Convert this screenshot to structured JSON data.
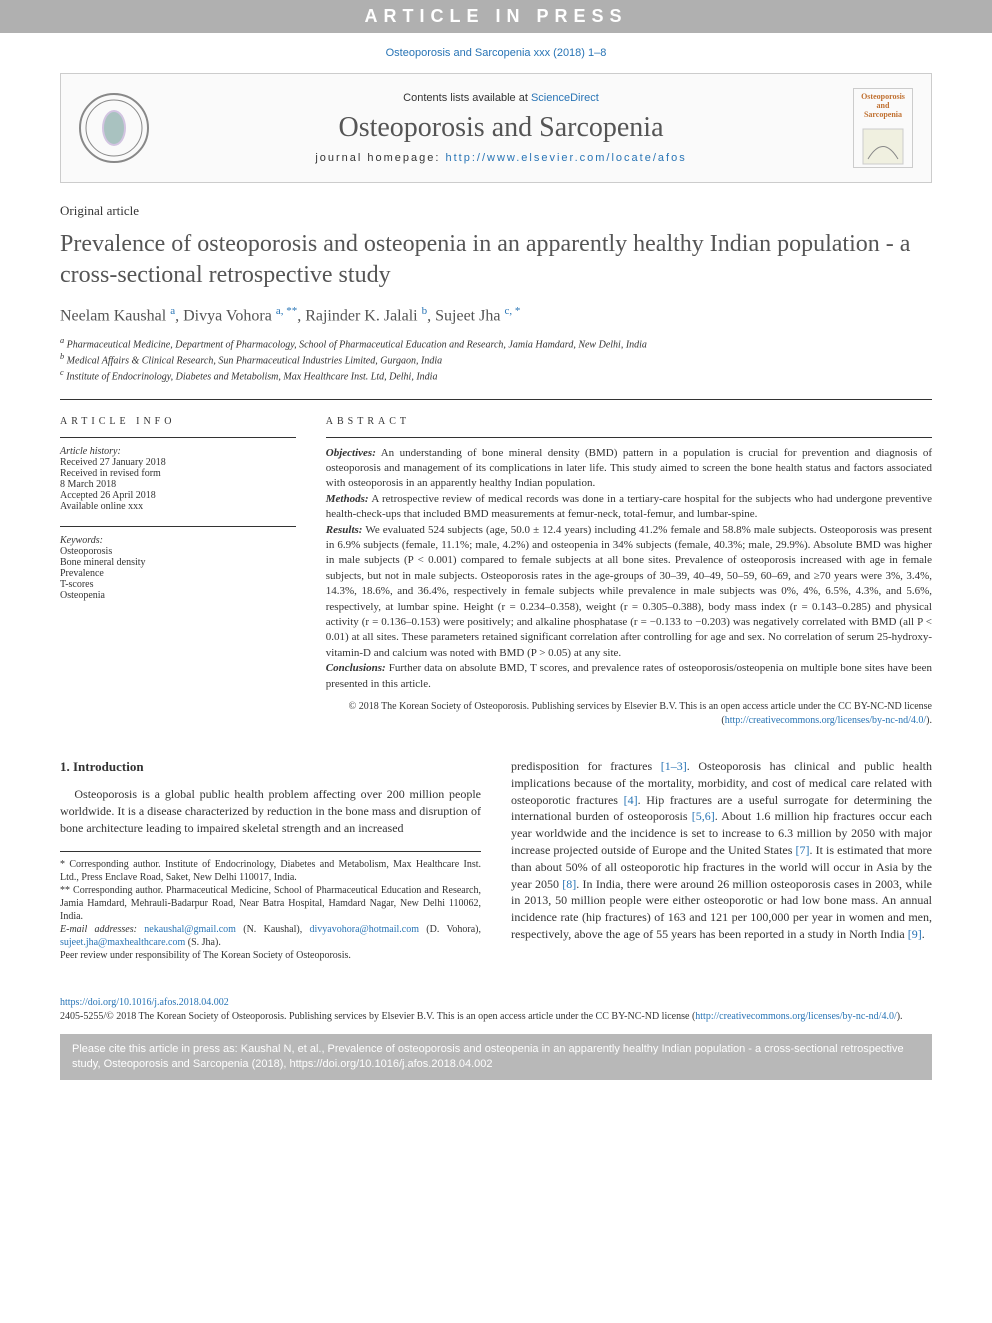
{
  "banner": "ARTICLE IN PRESS",
  "citation_top": "Osteoporosis and Sarcopenia xxx (2018) 1–8",
  "header": {
    "contents_text": "Contents lists available at ",
    "contents_link": "ScienceDirect",
    "journal": "Osteoporosis and Sarcopenia",
    "homepage_label": "journal homepage: ",
    "homepage_url": "http://www.elsevier.com/locate/afos",
    "cover_title": "Osteoporosis and Sarcopenia"
  },
  "article_type": "Original article",
  "title": "Prevalence of osteoporosis and osteopenia in an apparently healthy Indian population - a cross-sectional retrospective study",
  "authors_html": "Neelam Kaushal <sup>a</sup>, Divya Vohora <sup>a, **</sup>, Rajinder K. Jalali <sup>b</sup>, Sujeet Jha <sup>c, *</sup>",
  "affiliations": [
    "a Pharmaceutical Medicine, Department of Pharmacology, School of Pharmaceutical Education and Research, Jamia Hamdard, New Delhi, India",
    "b Medical Affairs & Clinical Research, Sun Pharmaceutical Industries Limited, Gurgaon, India",
    "c Institute of Endocrinology, Diabetes and Metabolism, Max Healthcare Inst. Ltd, Delhi, India"
  ],
  "info": {
    "heading": "ARTICLE INFO",
    "history_label": "Article history:",
    "history": [
      "Received 27 January 2018",
      "Received in revised form",
      "8 March 2018",
      "Accepted 26 April 2018",
      "Available online xxx"
    ],
    "keywords_label": "Keywords:",
    "keywords": [
      "Osteoporosis",
      "Bone mineral density",
      "Prevalence",
      "T-scores",
      "Osteopenia"
    ]
  },
  "abstract": {
    "heading": "ABSTRACT",
    "objectives_label": "Objectives:",
    "objectives": "An understanding of bone mineral density (BMD) pattern in a population is crucial for prevention and diagnosis of osteoporosis and management of its complications in later life. This study aimed to screen the bone health status and factors associated with osteoporosis in an apparently healthy Indian population.",
    "methods_label": "Methods:",
    "methods": "A retrospective review of medical records was done in a tertiary-care hospital for the subjects who had undergone preventive health-check-ups that included BMD measurements at femur-neck, total-femur, and lumbar-spine.",
    "results_label": "Results:",
    "results": "We evaluated 524 subjects (age, 50.0 ± 12.4 years) including 41.2% female and 58.8% male subjects. Osteoporosis was present in 6.9% subjects (female, 11.1%; male, 4.2%) and osteopenia in 34% subjects (female, 40.3%; male, 29.9%). Absolute BMD was higher in male subjects (P < 0.001) compared to female subjects at all bone sites. Prevalence of osteoporosis increased with age in female subjects, but not in male subjects. Osteoporosis rates in the age-groups of 30–39, 40–49, 50–59, 60–69, and ≥70 years were 3%, 3.4%, 14.3%, 18.6%, and 36.4%, respectively in female subjects while prevalence in male subjects was 0%, 4%, 6.5%, 4.3%, and 5.6%, respectively, at lumbar spine. Height (r = 0.234–0.358), weight (r = 0.305–0.388), body mass index (r = 0.143–0.285) and physical activity (r = 0.136–0.153) were positively; and alkaline phosphatase (r = −0.133 to −0.203) was negatively correlated with BMD (all P < 0.01) at all sites. These parameters retained significant correlation after controlling for age and sex. No correlation of serum 25-hydroxy-vitamin-D and calcium was noted with BMD (P > 0.05) at any site.",
    "conclusions_label": "Conclusions:",
    "conclusions": "Further data on absolute BMD, T scores, and prevalence rates of osteoporosis/osteopenia on multiple bone sites have been presented in this article.",
    "copyright": "© 2018 The Korean Society of Osteoporosis. Publishing services by Elsevier B.V. This is an open access article under the CC BY-NC-ND license (",
    "license_url": "http://creativecommons.org/licenses/by-nc-nd/4.0/",
    "copyright_end": ")."
  },
  "body": {
    "section1_heading": "1. Introduction",
    "para1": "Osteoporosis is a global public health problem affecting over 200 million people worldwide. It is a disease characterized by reduction in the bone mass and disruption of bone architecture leading to impaired skeletal strength and an increased",
    "para2_a": "predisposition for fractures ",
    "para2_ref1": "[1–3]",
    "para2_b": ". Osteoporosis has clinical and public health implications because of the mortality, morbidity, and cost of medical care related with osteoporotic fractures ",
    "para2_ref2": "[4]",
    "para2_c": ". Hip fractures are a useful surrogate for determining the international burden of osteoporosis ",
    "para2_ref3": "[5,6]",
    "para2_d": ". About 1.6 million hip fractures occur each year worldwide and the incidence is set to increase to 6.3 million by 2050 with major increase projected outside of Europe and the United States ",
    "para2_ref4": "[7]",
    "para2_e": ". It is estimated that more than about 50% of all osteoporotic hip fractures in the world will occur in Asia by the year 2050 ",
    "para2_ref5": "[8]",
    "para2_f": ". In India, there were around 26 million osteoporosis cases in 2003, while in 2013, 50 million people were either osteoporotic or had low bone mass. An annual incidence rate (hip fractures) of 163 and 121 per 100,000 per year in women and men, respectively, above the age of 55 years has been reported in a study in North India ",
    "para2_ref6": "[9]",
    "para2_g": "."
  },
  "footnotes": {
    "corr1": "* Corresponding author. Institute of Endocrinology, Diabetes and Metabolism, Max Healthcare Inst. Ltd., Press Enclave Road, Saket, New Delhi 110017, India.",
    "corr2": "** Corresponding author. Pharmaceutical Medicine, School of Pharmaceutical Education and Research, Jamia Hamdard, Mehrauli-Badarpur Road, Near Batra Hospital, Hamdard Nagar, New Delhi 110062, India.",
    "email_label": "E-mail addresses: ",
    "email1": "nekaushal@gmail.com",
    "email1_name": " (N. Kaushal), ",
    "email2": "divyavohora@hotmail.com",
    "email2_name": " (D. Vohora), ",
    "email3": "sujeet.jha@maxhealthcare.com",
    "email3_name": " (S. Jha).",
    "peer": "Peer review under responsibility of The Korean Society of Osteoporosis."
  },
  "doi": {
    "url": "https://doi.org/10.1016/j.afos.2018.04.002",
    "issn": "2405-5255/© 2018 The Korean Society of Osteoporosis. Publishing services by Elsevier B.V. This is an open access article under the CC BY-NC-ND license (",
    "license_url": "http://creativecommons.org/licenses/by-nc-nd/4.0/",
    "end": ")."
  },
  "cite_box": "Please cite this article in press as: Kaushal N, et al., Prevalence of osteoporosis and osteopenia in an apparently healthy Indian population - a cross-sectional retrospective study, Osteoporosis and Sarcopenia (2018), https://doi.org/10.1016/j.afos.2018.04.002"
}
